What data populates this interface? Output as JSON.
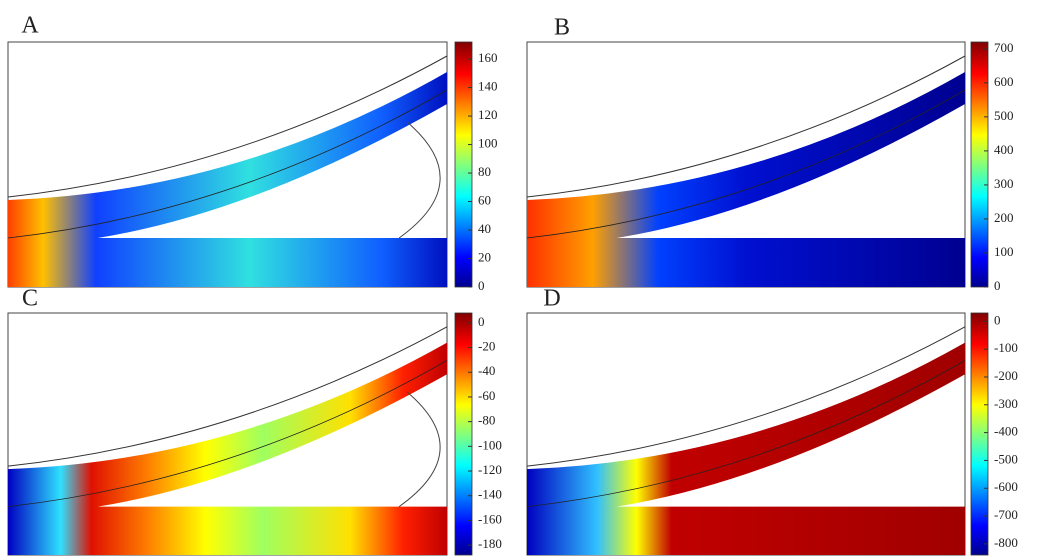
{
  "panels": [
    {
      "label": "A",
      "clim": [
        0,
        172
      ],
      "ticks": [
        0,
        20,
        40,
        60,
        80,
        100,
        120,
        140,
        160
      ]
    },
    {
      "label": "B",
      "clim": [
        0,
        720
      ],
      "ticks": [
        0,
        100,
        200,
        300,
        400,
        500,
        600,
        700
      ]
    },
    {
      "label": "C",
      "clim": [
        -188,
        8
      ],
      "ticks": [
        0,
        -20,
        -40,
        -60,
        -80,
        -100,
        -120,
        -140,
        -160,
        -180
      ]
    },
    {
      "label": "D",
      "clim": [
        -840,
        30
      ],
      "ticks": [
        0,
        -100,
        -200,
        -300,
        -400,
        -500,
        -600,
        -700,
        -800
      ]
    }
  ]
}
